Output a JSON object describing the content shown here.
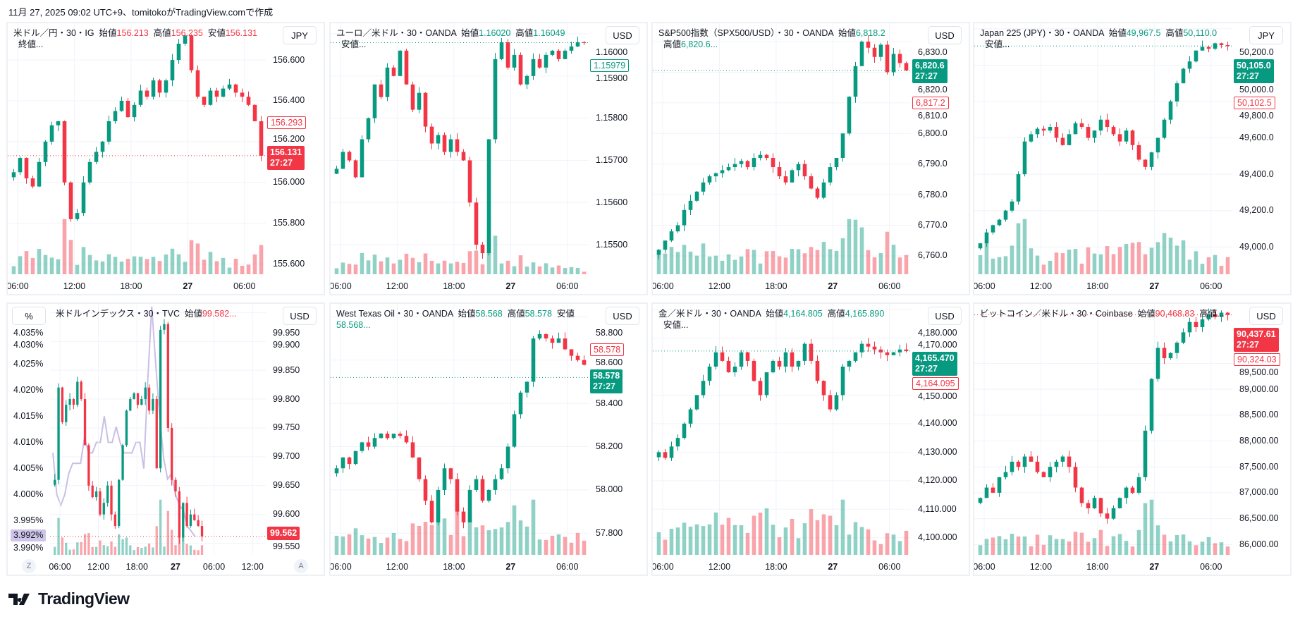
{
  "caption": "11月 27, 2025 09:02 UTC+9、tomitokoがTradingView.comで作成",
  "logo_text": "TradingView",
  "colors": {
    "up": "#089981",
    "down": "#f23645",
    "yield_line": "#c9bfe6"
  },
  "panels": [
    {
      "legend": [
        {
          "t": "米ドル／円・30・IG  始値"
        },
        {
          "t": "156.213",
          "c": "down"
        },
        {
          "t": "  高値"
        },
        {
          "t": "156.235",
          "c": "down"
        },
        {
          "t": "  安値"
        },
        {
          "t": "156.131",
          "c": "down"
        },
        {
          "t": "  終値..."
        }
      ],
      "currency": "JPY",
      "ylim": [
        155.55,
        156.78
      ],
      "yticks": [
        "155.600",
        "155.800",
        "156.000",
        "156.200",
        "156.400",
        "156.600"
      ],
      "xticks": [
        "06:00",
        "12:00",
        "18:00",
        "27",
        "06:00"
      ],
      "price_box": {
        "value": "156.131",
        "countdown": "27:27",
        "color": "down",
        "price": 156.131
      },
      "outline_box": {
        "value": "156.293",
        "color": "down",
        "price": 156.293
      },
      "closes": [
        156.05,
        156.12,
        156.02,
        155.98,
        156.1,
        156.2,
        156.28,
        156.3,
        156.0,
        155.82,
        155.85,
        156.0,
        156.1,
        156.15,
        156.2,
        156.3,
        156.35,
        156.4,
        156.32,
        156.38,
        156.45,
        156.42,
        156.5,
        156.44,
        156.5,
        156.6,
        156.68,
        156.72,
        156.55,
        156.42,
        156.38,
        156.45,
        156.42,
        156.46,
        156.48,
        156.44,
        156.42,
        156.38,
        156.3,
        156.131
      ]
    },
    {
      "legend": [
        {
          "t": "ユーロ／米ドル・30・OANDA  始値"
        },
        {
          "t": "1.16020",
          "c": "up"
        },
        {
          "t": "  高値"
        },
        {
          "t": "1.16049",
          "c": "up"
        },
        {
          "t": "  安値..."
        }
      ],
      "currency": "USD",
      "ylim": [
        1.1543,
        1.16025
      ],
      "yticks": [
        "1.15500",
        "1.15600",
        "1.15700",
        "1.15800",
        "1.15900",
        "1.16000"
      ],
      "xticks": [
        "06:00",
        "12:00",
        "18:00",
        "27",
        "06:00"
      ],
      "outline_box": {
        "value": "1.15979",
        "color": "up",
        "price": 1.15979
      },
      "closes": [
        1.1568,
        1.1572,
        1.157,
        1.1566,
        1.1575,
        1.158,
        1.1588,
        1.1585,
        1.1592,
        1.159,
        1.1596,
        1.1588,
        1.1582,
        1.1586,
        1.1578,
        1.1574,
        1.1576,
        1.1572,
        1.1575,
        1.1572,
        1.157,
        1.156,
        1.155,
        1.1548,
        1.1575,
        1.1594,
        1.1598,
        1.1592,
        1.1595,
        1.1588,
        1.159,
        1.1594,
        1.1592,
        1.1595,
        1.1596,
        1.1594,
        1.1596,
        1.1597,
        1.1598,
        1.15979
      ]
    },
    {
      "legend": [
        {
          "t": "S&P500指数（SPX500/USD）・30・OANDA  始値"
        },
        {
          "t": "6,818.2",
          "c": "up"
        },
        {
          "t": "  高値"
        },
        {
          "t": "6,820.6...",
          "c": "up"
        }
      ],
      "currency": "USD",
      "ylim": [
        6754,
        6836
      ],
      "yticks": [
        "6,760.0",
        "6,770.0",
        "6,780.0",
        "6,790.0",
        "6,800.0",
        "6,810.0",
        "6,820.0",
        "6,830.0"
      ],
      "xticks": [
        "06:00",
        "12:00",
        "18:00",
        "27",
        "06:00"
      ],
      "price_box": {
        "value": "6,820.6",
        "countdown": "27:27",
        "color": "up",
        "price": 6820.6
      },
      "outline_box": {
        "value": "6,817.2",
        "color": "down",
        "price": 6812.5
      },
      "closes": [
        6762,
        6765,
        6768,
        6770,
        6775,
        6778,
        6781,
        6784,
        6786,
        6787,
        6788,
        6789,
        6790,
        6791,
        6789,
        6792,
        6793,
        6792,
        6789,
        6786,
        6784,
        6788,
        6790,
        6786,
        6782,
        6779,
        6784,
        6789,
        6792,
        6800,
        6812,
        6822,
        6830,
        6828,
        6825,
        6829,
        6820,
        6826,
        6823,
        6820.6
      ]
    },
    {
      "legend": [
        {
          "t": "Japan 225 (JPY)・30・OANDA  始値"
        },
        {
          "t": "49,967.5",
          "c": "up"
        },
        {
          "t": "  高値"
        },
        {
          "t": "50,110.0",
          "c": "up"
        },
        {
          "t": "  安値..."
        }
      ],
      "currency": "JPY",
      "ylim": [
        48850,
        50230
      ],
      "yticks": [
        "49,000.0",
        "49,200.0",
        "49,400.0",
        "49,600.0",
        "49,800.0",
        "50,000.0",
        "50,200.0"
      ],
      "xticks": [
        "06:00",
        "12:00",
        "18:00",
        "27",
        "06:00"
      ],
      "price_box": {
        "value": "50,105.0",
        "countdown": "27:27",
        "color": "up",
        "price": 50105
      },
      "outline_box": {
        "value": "50,102.5",
        "color": "down",
        "price": 49990
      },
      "closes": [
        49020,
        49080,
        49120,
        49150,
        49200,
        49250,
        49400,
        49580,
        49620,
        49650,
        49640,
        49660,
        49600,
        49560,
        49620,
        49680,
        49660,
        49600,
        49640,
        49700,
        49660,
        49620,
        49580,
        49640,
        49560,
        49480,
        49440,
        49520,
        49600,
        49700,
        49800,
        49900,
        49980,
        50020,
        50080,
        50100,
        50090,
        50120,
        50110,
        50105
      ]
    },
    {
      "legend": [
        {
          "t": "米ドルインデックス・30・TVC  始値"
        },
        {
          "t": "99.582...",
          "c": "down"
        }
      ],
      "currency": "USD",
      "left_axis_label": "%",
      "ylim": [
        99.53,
        99.965
      ],
      "yticks": [
        "99.550",
        "99.600",
        "99.650",
        "99.700",
        "99.750",
        "99.800",
        "99.850",
        "99.900",
        "99.950"
      ],
      "left_ylim": [
        3.9885,
        4.0365
      ],
      "left_yticks": [
        "3.990%",
        "3.995%",
        "4.000%",
        "4.005%",
        "4.010%",
        "4.015%",
        "4.020%",
        "4.025%",
        "4.030%",
        "4.035%"
      ],
      "left_box": {
        "value": "3.992%",
        "price": 3.992
      },
      "xticks": [
        "06:00",
        "12:00",
        "18:00",
        "27",
        "06:00",
        "12:00"
      ],
      "scale_buttons": {
        "left": "Z",
        "right": "A"
      },
      "price_box": {
        "value": "99.562",
        "color": "down",
        "price": 99.562
      },
      "closes": [
        99.66,
        99.82,
        99.76,
        99.79,
        99.8,
        99.79,
        99.83,
        99.8,
        99.72,
        99.65,
        99.63,
        99.64,
        99.6,
        99.62,
        99.65,
        99.6,
        99.58,
        99.66,
        99.72,
        99.78,
        99.8,
        99.81,
        99.79,
        99.8,
        99.82,
        99.78,
        99.8,
        99.68,
        99.92,
        99.93,
        99.75,
        99.66,
        99.64,
        99.56,
        99.62,
        99.58,
        99.6,
        99.59,
        99.58,
        99.562
      ],
      "yield_line": [
        4.008,
        4.0,
        3.998,
        4.0,
        4.004,
        4.006,
        4.006,
        4.006,
        4.011,
        4.008,
        4.008,
        4.01,
        4.01,
        4.015,
        4.01,
        4.01,
        4.013,
        4.01,
        4.008,
        4.008,
        4.008,
        4.01,
        4.01,
        4.005,
        4.022,
        4.036,
        4.025,
        4.015,
        4.007,
        4.003,
        4.004,
        4.0,
        3.998,
        3.997,
        3.994,
        3.993,
        3.992
      ]
    },
    {
      "legend": [
        {
          "t": "West Texas Oil・30・OANDA  始値"
        },
        {
          "t": "58.568",
          "c": "up"
        },
        {
          "t": "  高値"
        },
        {
          "t": "58.578",
          "c": "up"
        },
        {
          "t": "  安値"
        },
        {
          "t": "58.568...",
          "c": "up"
        }
      ],
      "currency": "USD",
      "ylim": [
        57.7,
        58.86
      ],
      "yticks": [
        "57.800",
        "58.000",
        "58.200",
        "58.400",
        "58.600",
        "58.800"
      ],
      "xticks": [
        "06:00",
        "12:00",
        "18:00",
        "27",
        "06:00"
      ],
      "price_box": {
        "value": "58.578",
        "countdown": "27:27",
        "color": "up",
        "price": 58.52
      },
      "outline_box": {
        "value": "58.578",
        "color": "down",
        "price": 58.62
      },
      "closes": [
        58.1,
        58.15,
        58.12,
        58.18,
        58.22,
        58.2,
        58.24,
        58.26,
        58.24,
        58.26,
        58.25,
        58.22,
        58.15,
        58.05,
        57.95,
        57.85,
        58.0,
        58.1,
        58.05,
        57.9,
        57.85,
        58.0,
        58.05,
        57.95,
        58.0,
        58.05,
        58.1,
        58.2,
        58.35,
        58.45,
        58.5,
        58.7,
        58.72,
        58.7,
        58.68,
        58.7,
        58.65,
        58.62,
        58.6,
        58.578
      ]
    },
    {
      "legend": [
        {
          "t": "金／米ドル・30・OANDA  始値"
        },
        {
          "t": "4,164.805",
          "c": "up"
        },
        {
          "t": "  高値"
        },
        {
          "t": "4,165.890",
          "c": "up"
        },
        {
          "t": "  安値..."
        }
      ],
      "currency": "USD",
      "ylim": [
        4094,
        4182
      ],
      "yticks": [
        "4,100.000",
        "4,110.000",
        "4,120.000",
        "4,130.000",
        "4,140.000",
        "4,150.000",
        "4,170.000",
        "4,180.000"
      ],
      "xticks": [
        "06:00",
        "12:00",
        "18:00",
        "27",
        "06:00"
      ],
      "price_box": {
        "value": "4,165.470",
        "countdown": "27:27",
        "color": "up",
        "price": 4165.47
      },
      "outline_box": {
        "value": "4,164.095",
        "color": "down",
        "price": 4159.5
      },
      "closes": [
        4130,
        4128,
        4132,
        4135,
        4140,
        4145,
        4150,
        4155,
        4160,
        4165,
        4162,
        4158,
        4160,
        4165,
        4162,
        4155,
        4150,
        4158,
        4162,
        4160,
        4165,
        4160,
        4162,
        4168,
        4162,
        4155,
        4150,
        4145,
        4150,
        4160,
        4162,
        4165,
        4168,
        4167,
        4166,
        4165,
        4164,
        4165,
        4166,
        4165.47
      ]
    },
    {
      "legend": [
        {
          "t": "ビットコイン／米ドル・30・Coinbase  始値"
        },
        {
          "t": "90,468.83",
          "c": "down"
        },
        {
          "t": "  高値..."
        }
      ],
      "currency": "USD",
      "ylim": [
        85800,
        90650
      ],
      "yticks": [
        "86,000.00",
        "86,500.00",
        "87,000.00",
        "87,500.00",
        "88,000.00",
        "88,500.00",
        "89,000.00",
        "89,500.00"
      ],
      "xticks": [
        "06:00",
        "12:00",
        "18:00",
        "27",
        "06:00"
      ],
      "price_box": {
        "value": "90,437.61",
        "countdown": "27:27",
        "color": "down",
        "price": 90437.61
      },
      "outline_box": {
        "value": "90,324.03",
        "color": "down",
        "price": 90050
      },
      "closes": [
        86900,
        87100,
        87000,
        87300,
        87400,
        87600,
        87500,
        87700,
        87600,
        87400,
        87300,
        87500,
        87600,
        87700,
        87500,
        87100,
        86800,
        86700,
        86900,
        86600,
        86500,
        86700,
        86900,
        87100,
        87000,
        87300,
        88200,
        89200,
        89800,
        89600,
        89700,
        89900,
        90100,
        90300,
        90200,
        90350,
        90450,
        90400,
        90480,
        90437.61
      ]
    }
  ]
}
